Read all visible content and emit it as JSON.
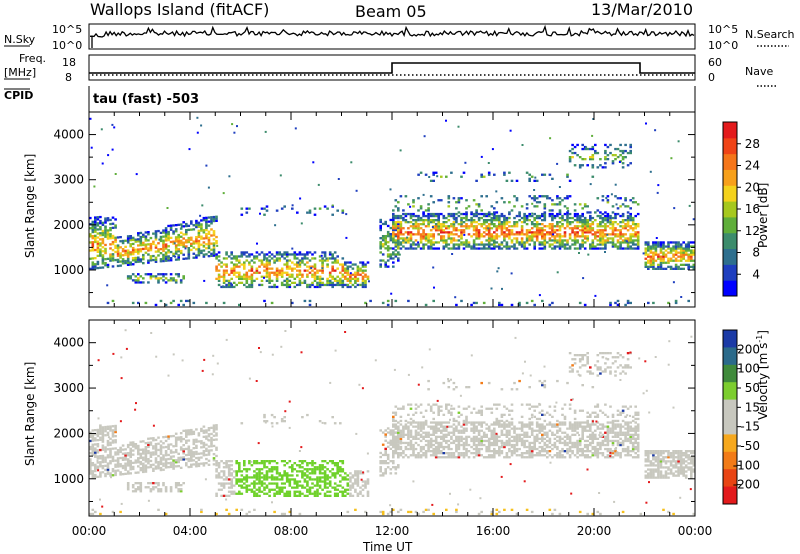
{
  "header": {
    "station": "Wallops Island (fitACF)",
    "beam": "Beam 05",
    "date": "13/Mar/2010"
  },
  "panels": {
    "nsky_label": "N.Sky",
    "nsearch_label": "N.Search",
    "freq_label": "Freq.",
    "freq_unit": "[MHz]",
    "nave_label": "Nave",
    "cpid_label": "CPID",
    "cpid_value": "tau (fast) -503",
    "nsky_ticks": [
      "10^5",
      "10^0"
    ],
    "nsearch_ticks": [
      "10^5",
      "10^0"
    ],
    "freq_ticks": [
      "18",
      "8"
    ],
    "nave_ticks": [
      "60",
      "0"
    ]
  },
  "chart_data": [
    {
      "type": "heatmap",
      "title": "",
      "xlabel": "Time UT",
      "ylabel": "Slant Range [km]",
      "x_ticks": [
        "00:00",
        "04:00",
        "08:00",
        "12:00",
        "16:00",
        "20:00",
        "00:00"
      ],
      "y_ticks": [
        1000,
        2000,
        3000,
        4000
      ],
      "xlim_hours": [
        0,
        24
      ],
      "ylim_km": [
        180,
        4500
      ],
      "colorbar": {
        "label": "Power [dB]",
        "ticks": [
          "4",
          "8",
          "12",
          "16",
          "20",
          "24",
          "28"
        ],
        "colors": [
          "#0000ff",
          "#1f3fbf",
          "#2e6f8e",
          "#3c8c6c",
          "#5fae3a",
          "#a6c81e",
          "#f4d21c",
          "#f7a01b",
          "#f5761a",
          "#f04417",
          "#e31a1c"
        ]
      }
    },
    {
      "type": "heatmap",
      "title": "",
      "xlabel": "Time UT",
      "ylabel": "Slant Range [km]",
      "x_ticks": [
        "00:00",
        "04:00",
        "08:00",
        "12:00",
        "16:00",
        "20:00",
        "00:00"
      ],
      "y_ticks": [
        1000,
        2000,
        3000,
        4000
      ],
      "xlim_hours": [
        0,
        24
      ],
      "ylim_km": [
        180,
        4500
      ],
      "colorbar": {
        "label": "Velocity [m s",
        "label_sup": "-1",
        "label_end": "]",
        "ticks": [
          "200",
          "100",
          "50",
          "15",
          "-15",
          "-50",
          "-100",
          "-200"
        ],
        "colors": [
          "#1b3aa6",
          "#2b6a8a",
          "#3f8a3b",
          "#7ccd2e",
          "#c8c8bf",
          "#c8c8bf",
          "#f6a81d",
          "#f27b17",
          "#e84414",
          "#e31a1c"
        ]
      }
    }
  ],
  "colors": {
    "power_low": "#2b3fd0",
    "power_mid": "#3c8c6c",
    "power_high": "#f4d21c",
    "power_peak": "#e83a1a",
    "velocity_ground": "#c8c8bf",
    "velocity_pos": "#6fd12a"
  }
}
